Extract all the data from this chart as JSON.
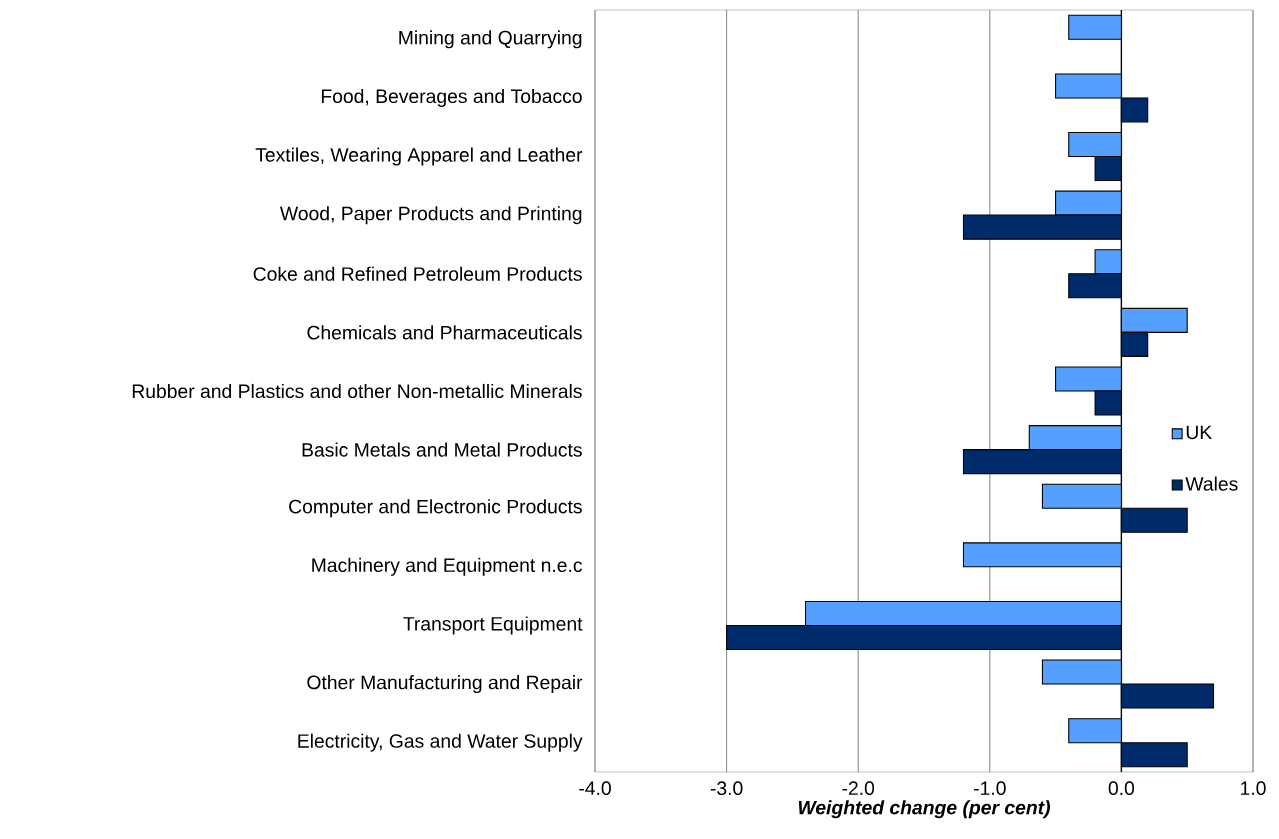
{
  "chart_data": {
    "type": "bar",
    "orientation": "horizontal",
    "xlabel": "Weighted change (per cent)",
    "categories": [
      "Mining and Quarrying",
      "Food, Beverages and Tobacco",
      "Textiles, Wearing Apparel and Leather",
      "Wood, Paper Products and Printing",
      "Coke and Refined Petroleum Products",
      "Chemicals and Pharmaceuticals",
      "Rubber and Plastics and other Non-metallic Minerals",
      "Basic Metals and Metal Products",
      "Computer and Electronic Products",
      "Machinery and Equipment n.e.c",
      "Transport Equipment",
      "Other Manufacturing and Repair",
      "Electricity, Gas and Water Supply"
    ],
    "series": [
      {
        "name": "UK",
        "color": "#55a0ff",
        "values": [
          -0.4,
          -0.5,
          -0.4,
          -0.5,
          -0.2,
          0.5,
          -0.5,
          -0.7,
          -0.6,
          -1.2,
          -2.4,
          -0.6,
          -0.4
        ]
      },
      {
        "name": "Wales",
        "color": "#002b6a",
        "values": [
          null,
          0.2,
          -0.2,
          -1.2,
          -0.4,
          0.2,
          -0.2,
          -1.2,
          0.5,
          null,
          -3.0,
          0.7,
          0.5
        ]
      }
    ],
    "xlim": [
      -4,
      1
    ],
    "xticks": [
      {
        "value": -4,
        "label": "-4.0"
      },
      {
        "value": -3,
        "label": "-3.0"
      },
      {
        "value": -2,
        "label": "-2.0"
      },
      {
        "value": -1,
        "label": "-1.0"
      },
      {
        "value": 0,
        "label": "0.0"
      },
      {
        "value": 1,
        "label": "1.0"
      }
    ],
    "grid": "x",
    "legend": "right"
  }
}
